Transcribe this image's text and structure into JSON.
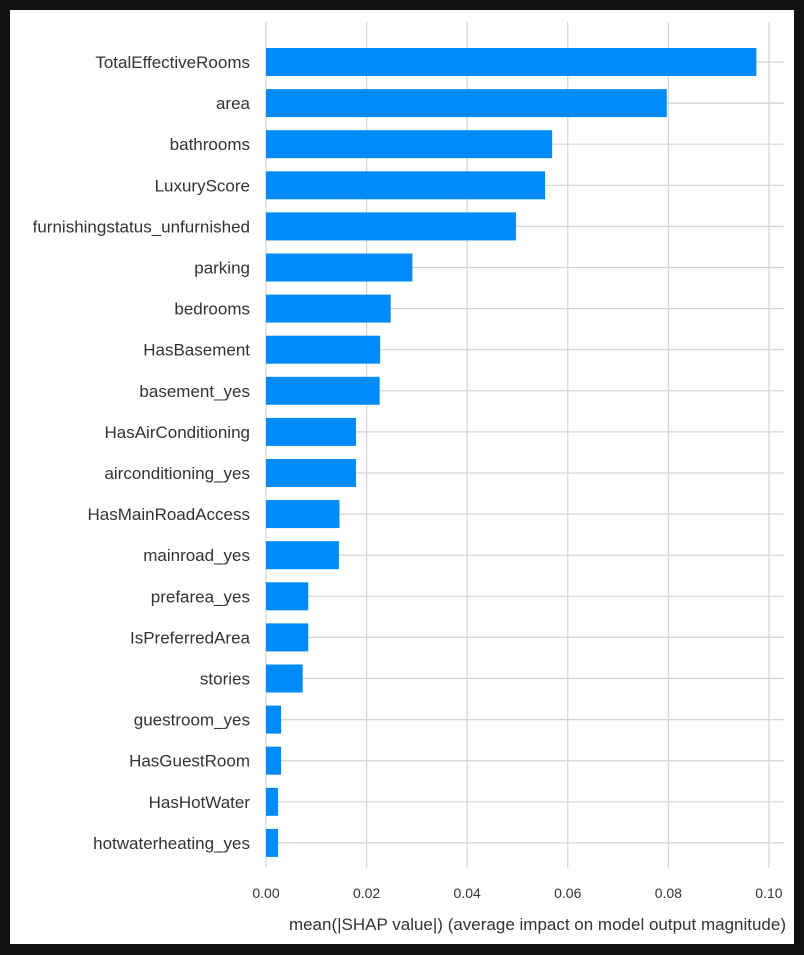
{
  "chart_data": {
    "type": "bar",
    "orientation": "horizontal",
    "categories": [
      "TotalEffectiveRooms",
      "area",
      "bathrooms",
      "LuxuryScore",
      "furnishingstatus_unfurnished",
      "parking",
      "bedrooms",
      "HasBasement",
      "basement_yes",
      "HasAirConditioning",
      "airconditioning_yes",
      "HasMainRoadAccess",
      "mainroad_yes",
      "prefarea_yes",
      "IsPreferredArea",
      "stories",
      "guestroom_yes",
      "HasGuestRoom",
      "HasHotWater",
      "hotwaterheating_yes"
    ],
    "values": [
      0.0975,
      0.0797,
      0.0569,
      0.0555,
      0.0497,
      0.0291,
      0.0248,
      0.0227,
      0.0226,
      0.0179,
      0.0179,
      0.0146,
      0.0145,
      0.0084,
      0.0084,
      0.0073,
      0.003,
      0.003,
      0.0024,
      0.0024
    ],
    "xticks": [
      "0.00",
      "0.02",
      "0.04",
      "0.06",
      "0.08",
      "0.10"
    ],
    "xtick_values": [
      0,
      0.02,
      0.04,
      0.06,
      0.08,
      0.1
    ],
    "xlabel": "mean(|SHAP value|) (average impact on model output magnitude)",
    "ylabel": "",
    "title": "",
    "xlim": [
      0,
      0.103
    ],
    "grid": true,
    "bar_color": "#008bfb",
    "grid_color": "#d4d4d4",
    "text_color": "#333333"
  }
}
